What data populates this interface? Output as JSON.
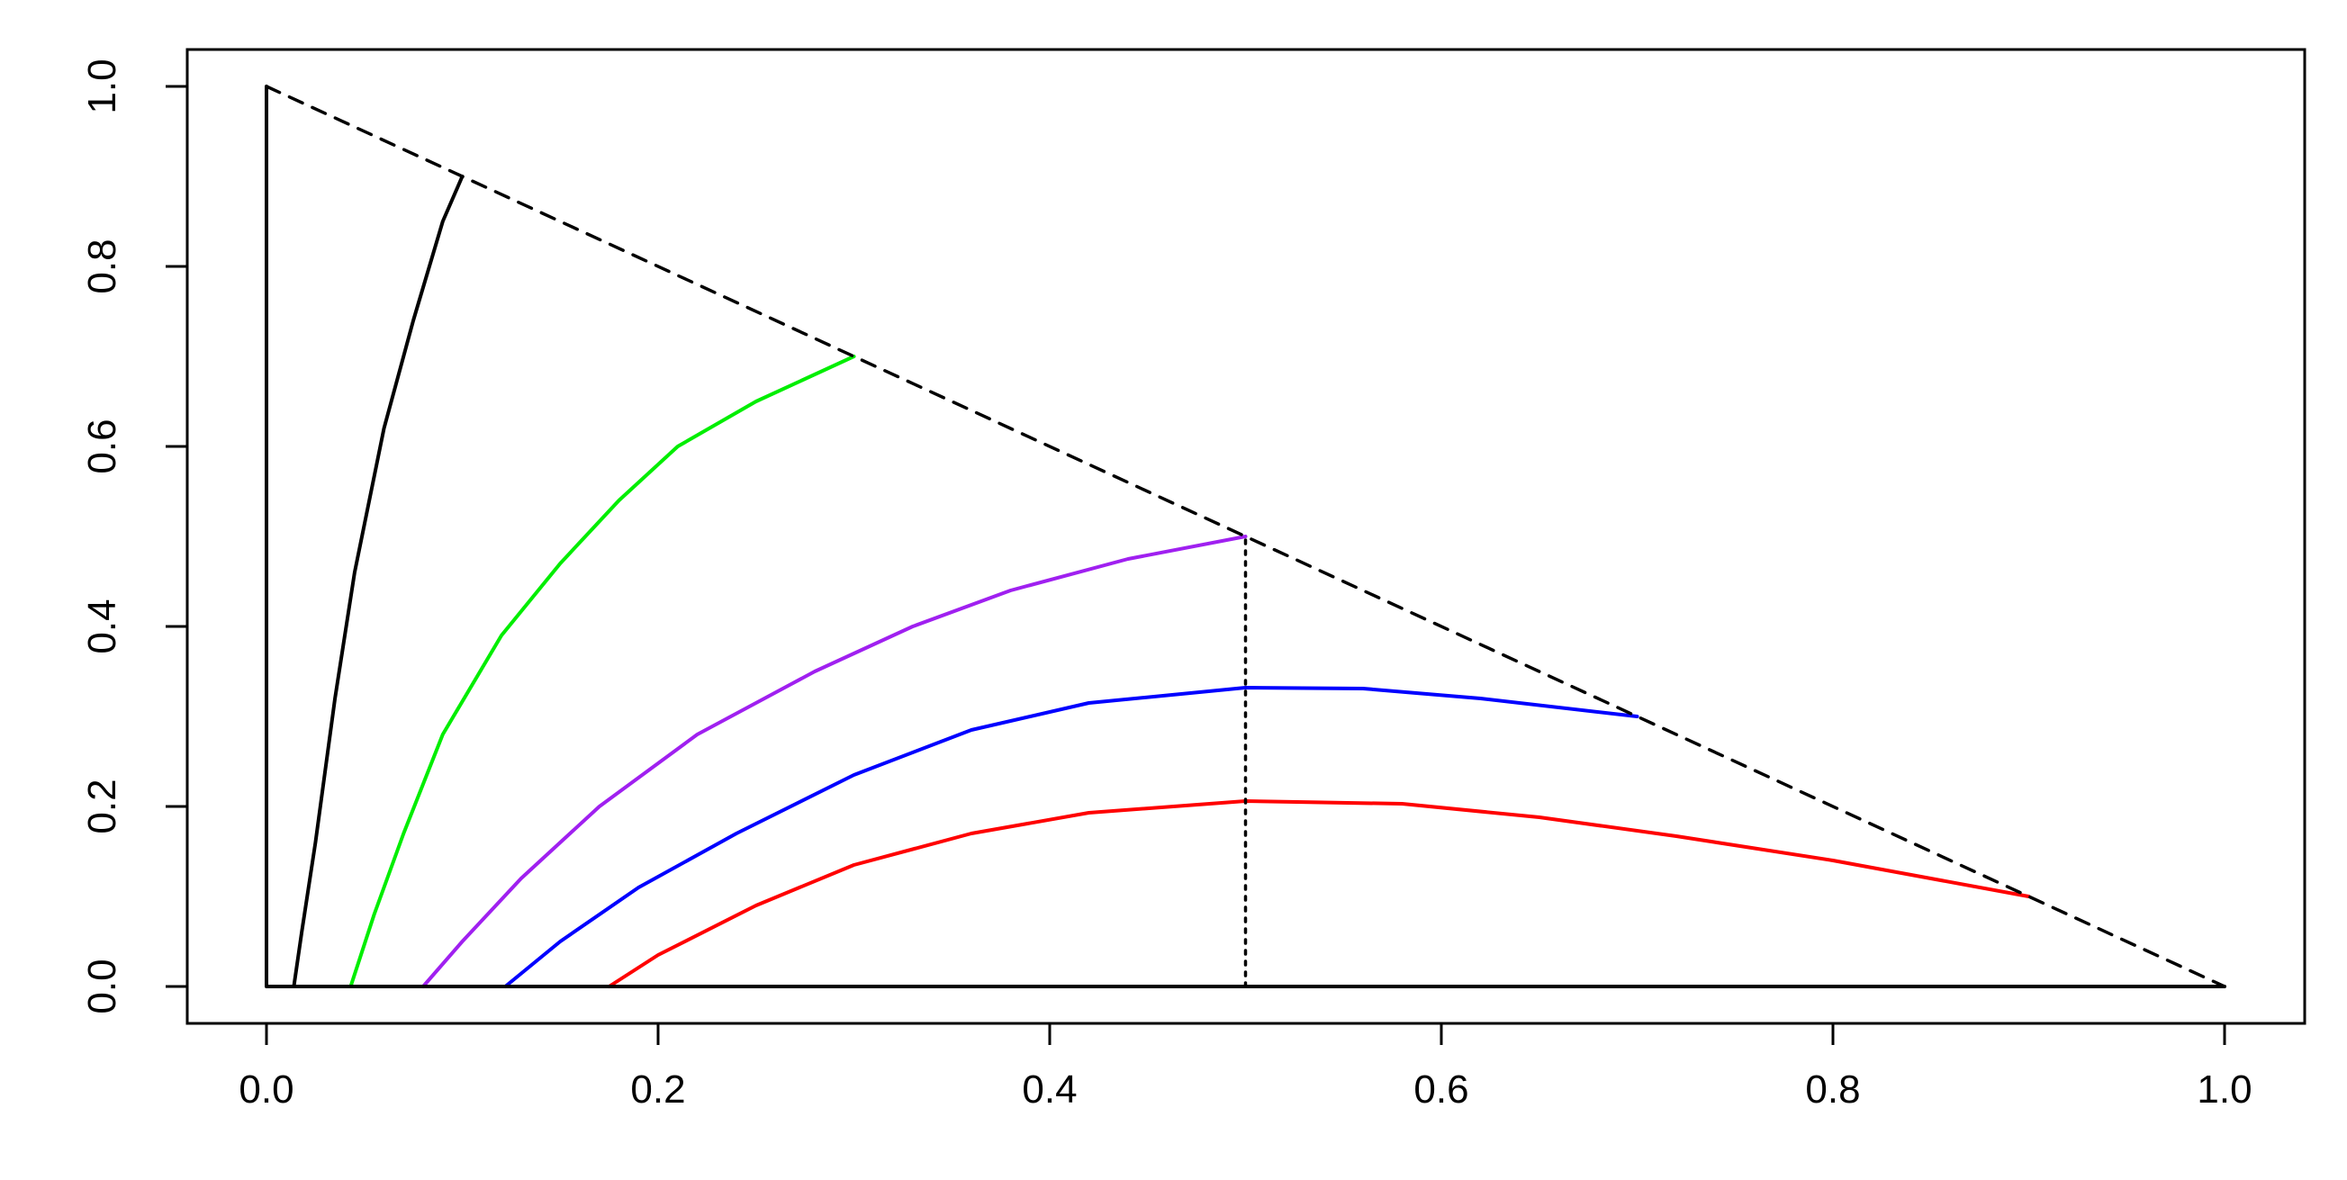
{
  "chart_data": {
    "type": "line",
    "title": "",
    "xlabel": "",
    "ylabel": "",
    "xlim": [
      0,
      1
    ],
    "ylim": [
      0,
      1
    ],
    "grid": false,
    "x_ticks": [
      "0.0",
      "0.2",
      "0.4",
      "0.6",
      "0.8",
      "1.0"
    ],
    "y_ticks": [
      "0.0",
      "0.2",
      "0.4",
      "0.6",
      "0.8",
      "1.0"
    ],
    "x_tick_values": [
      0,
      0.2,
      0.4,
      0.6,
      0.8,
      1.0
    ],
    "y_tick_values": [
      0,
      0.2,
      0.4,
      0.6,
      0.8,
      1.0
    ],
    "series": [
      {
        "color": "#000000",
        "style": "solid",
        "points": [
          [
            0.014,
            0
          ],
          [
            0.018,
            0.06
          ],
          [
            0.025,
            0.16
          ],
          [
            0.035,
            0.32
          ],
          [
            0.045,
            0.46
          ],
          [
            0.06,
            0.62
          ],
          [
            0.075,
            0.74
          ],
          [
            0.09,
            0.85
          ],
          [
            0.1,
            0.9
          ]
        ]
      },
      {
        "color": "#00ee00",
        "style": "solid",
        "points": [
          [
            0.043,
            0
          ],
          [
            0.055,
            0.08
          ],
          [
            0.07,
            0.17
          ],
          [
            0.09,
            0.28
          ],
          [
            0.12,
            0.39
          ],
          [
            0.15,
            0.47
          ],
          [
            0.18,
            0.54
          ],
          [
            0.21,
            0.6
          ],
          [
            0.25,
            0.65
          ],
          [
            0.3,
            0.7
          ]
        ]
      },
      {
        "color": "#a020f0",
        "style": "solid",
        "points": [
          [
            0.08,
            0
          ],
          [
            0.1,
            0.05
          ],
          [
            0.13,
            0.12
          ],
          [
            0.17,
            0.2
          ],
          [
            0.22,
            0.28
          ],
          [
            0.28,
            0.35
          ],
          [
            0.33,
            0.4
          ],
          [
            0.38,
            0.44
          ],
          [
            0.44,
            0.475
          ],
          [
            0.5,
            0.5
          ]
        ]
      },
      {
        "color": "#0000ff",
        "style": "solid",
        "points": [
          [
            0.122,
            0
          ],
          [
            0.15,
            0.05
          ],
          [
            0.19,
            0.11
          ],
          [
            0.24,
            0.17
          ],
          [
            0.3,
            0.235
          ],
          [
            0.36,
            0.285
          ],
          [
            0.42,
            0.315
          ],
          [
            0.5,
            0.332
          ],
          [
            0.56,
            0.331
          ],
          [
            0.62,
            0.32
          ],
          [
            0.7,
            0.3
          ]
        ]
      },
      {
        "color": "#ff0000",
        "style": "solid",
        "points": [
          [
            0.175,
            0
          ],
          [
            0.2,
            0.035
          ],
          [
            0.25,
            0.09
          ],
          [
            0.3,
            0.135
          ],
          [
            0.36,
            0.17
          ],
          [
            0.42,
            0.193
          ],
          [
            0.5,
            0.206
          ],
          [
            0.58,
            0.203
          ],
          [
            0.65,
            0.188
          ],
          [
            0.72,
            0.167
          ],
          [
            0.8,
            0.14
          ],
          [
            0.9,
            0.1
          ]
        ]
      },
      {
        "color": "#000000",
        "style": "dashed",
        "points": [
          [
            0,
            1
          ],
          [
            1,
            0
          ]
        ]
      },
      {
        "color": "#000000",
        "style": "dotted",
        "points": [
          [
            0.5,
            0
          ],
          [
            0.5,
            0.5
          ]
        ]
      },
      {
        "color": "#000000",
        "style": "solid",
        "points": [
          [
            0,
            1
          ],
          [
            0,
            0
          ],
          [
            1,
            0
          ]
        ]
      }
    ]
  }
}
